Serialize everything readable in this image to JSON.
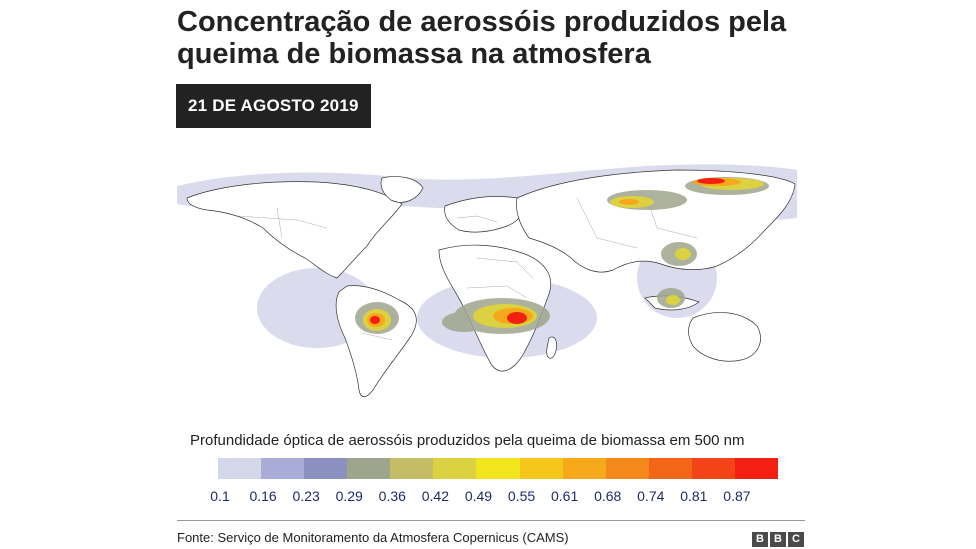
{
  "header": {
    "title": "Concentração de aerossóis produzidos pela queima de biomassa na atmosfera",
    "date": "21 DE AGOSTO 2019"
  },
  "map": {
    "type": "world-choropleth",
    "hotspots": [
      {
        "region": "central-south-america",
        "level": 0.87
      },
      {
        "region": "central-africa",
        "level": 0.87
      },
      {
        "region": "siberia",
        "level": 0.87
      },
      {
        "region": "southeast-asia",
        "level": 0.61
      },
      {
        "region": "east-asia",
        "level": 0.42
      },
      {
        "region": "south-atlantic-plume",
        "level": 0.36
      }
    ]
  },
  "legend": {
    "title": "Profundidade óptica de aerossóis produzidos pela queima de biomassa em 500 nm",
    "ticks": [
      "0.1",
      "0.16",
      "0.23",
      "0.29",
      "0.36",
      "0.42",
      "0.49",
      "0.55",
      "0.61",
      "0.68",
      "0.74",
      "0.81",
      "0.87"
    ],
    "colors": [
      "#d4d6ea",
      "#a8acd6",
      "#8a91c0",
      "#9ea58d",
      "#c5bd65",
      "#dcd140",
      "#f1e61e",
      "#f6c61b",
      "#f7a91b",
      "#f5881a",
      "#f36618",
      "#f24416",
      "#f21f12"
    ]
  },
  "footer": {
    "source": "Fonte: Serviço de Monitoramento da Atmosfera Copernicus (CAMS)",
    "logo_letters": [
      "B",
      "B",
      "C"
    ]
  }
}
